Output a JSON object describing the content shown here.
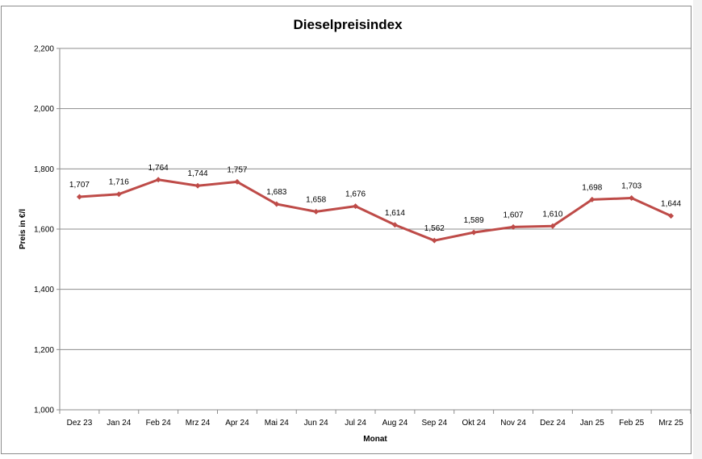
{
  "chart_data": {
    "type": "line",
    "title": "Dieselpreisindex",
    "xlabel": "Monat",
    "ylabel": "Preis in €/l",
    "ylim": [
      1.0,
      2.2
    ],
    "yticks": [
      1.0,
      1.2,
      1.4,
      1.6,
      1.8,
      2.0,
      2.2
    ],
    "ytick_labels": [
      "1,000",
      "1,200",
      "1,400",
      "1,600",
      "1,800",
      "2,000",
      "2,200"
    ],
    "grid": "horizontal",
    "legend": "none",
    "categories": [
      "Dez 23",
      "Jan 24",
      "Feb 24",
      "Mrz 24",
      "Apr 24",
      "Mai 24",
      "Jun 24",
      "Jul 24",
      "Aug 24",
      "Sep 24",
      "Okt 24",
      "Nov 24",
      "Dez 24",
      "Jan 25",
      "Feb 25",
      "Mrz 25"
    ],
    "series": [
      {
        "values": [
          1.707,
          1.716,
          1.764,
          1.744,
          1.757,
          1.683,
          1.658,
          1.676,
          1.614,
          1.562,
          1.589,
          1.607,
          1.61,
          1.698,
          1.703,
          1.644
        ],
        "labels": [
          "1,707",
          "1,716",
          "1,764",
          "1,744",
          "1,757",
          "1,683",
          "1,658",
          "1,676",
          "1,614",
          "1,562",
          "1,589",
          "1,607",
          "1,610",
          "1,698",
          "1,703",
          "1,644"
        ],
        "color": "#be4b48"
      }
    ]
  }
}
